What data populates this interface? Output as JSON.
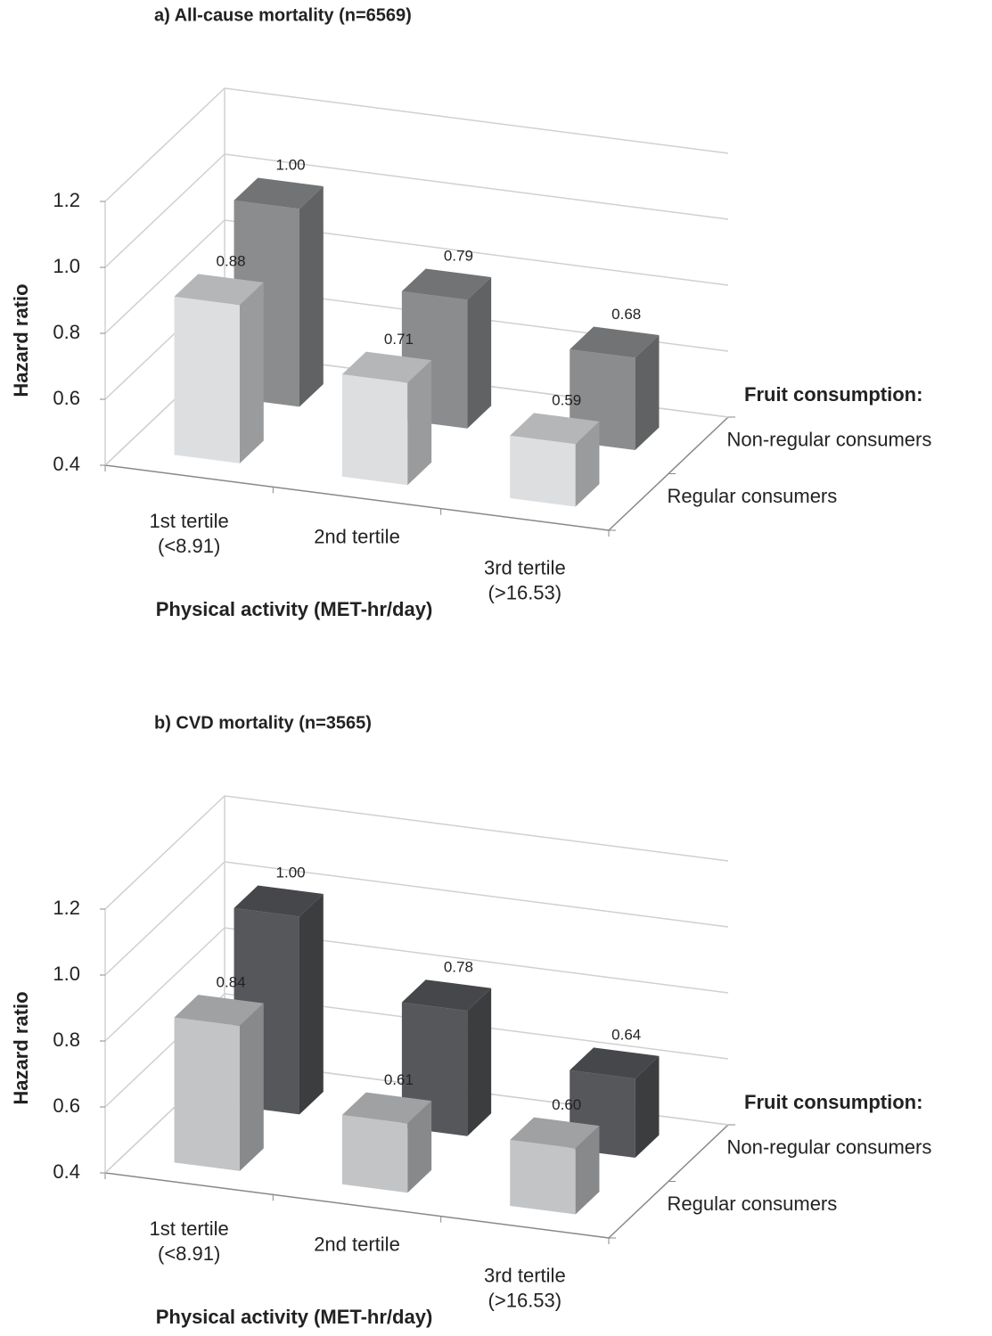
{
  "chart_data": [
    {
      "type": "bar",
      "title": "a)  All-cause mortality  (n=6569)",
      "ylabel": "Hazard ratio",
      "xlabel": "Physical activity (MET-hr/day)",
      "legend_title": "Fruit consumption:",
      "categories": [
        [
          "1st tertile",
          "(<8.91)"
        ],
        [
          "2nd tertile"
        ],
        [
          "3rd tertile",
          "(>16.53)"
        ]
      ],
      "series": [
        {
          "name": "Regular consumers",
          "color": "#dcdee0",
          "values": [
            0.88,
            0.71,
            0.59
          ],
          "value_labels": [
            "0.88",
            "0.71",
            "0.59"
          ]
        },
        {
          "name": "Non-regular consumers",
          "color": "#8a8c8e",
          "values": [
            1.0,
            0.79,
            0.68
          ],
          "value_labels": [
            "1.00",
            "0.79",
            "0.68"
          ]
        }
      ],
      "ylim": [
        0.4,
        1.2
      ],
      "yticks": [
        0.4,
        0.6,
        0.8,
        {
          "value": 1.0,
          "label": "1.0"
        },
        1.2
      ],
      "grid": true
    },
    {
      "type": "bar",
      "title": "b)  CVD mortality (n=3565)",
      "ylabel": "Hazard ratio",
      "xlabel": "Physical activity (MET-hr/day)",
      "legend_title": "Fruit consumption:",
      "categories": [
        [
          "1st tertile",
          "(<8.91)"
        ],
        [
          "2nd tertile"
        ],
        [
          "3rd tertile",
          "(>16.53)"
        ]
      ],
      "series": [
        {
          "name": "Regular consumers",
          "color": "#c2c4c6",
          "values": [
            0.84,
            0.61,
            0.6
          ],
          "value_labels": [
            "0.84",
            "0.61",
            "0.60"
          ]
        },
        {
          "name": "Non-regular consumers",
          "color": "#55575a",
          "values": [
            1.0,
            0.78,
            0.64
          ],
          "value_labels": [
            "1.00",
            "0.78",
            "0.64"
          ]
        }
      ],
      "ylim": [
        0.4,
        1.2
      ],
      "yticks": [
        0.4,
        0.6,
        0.8,
        {
          "value": 1.0,
          "label": "1.0"
        },
        1.2
      ],
      "grid": true
    }
  ]
}
